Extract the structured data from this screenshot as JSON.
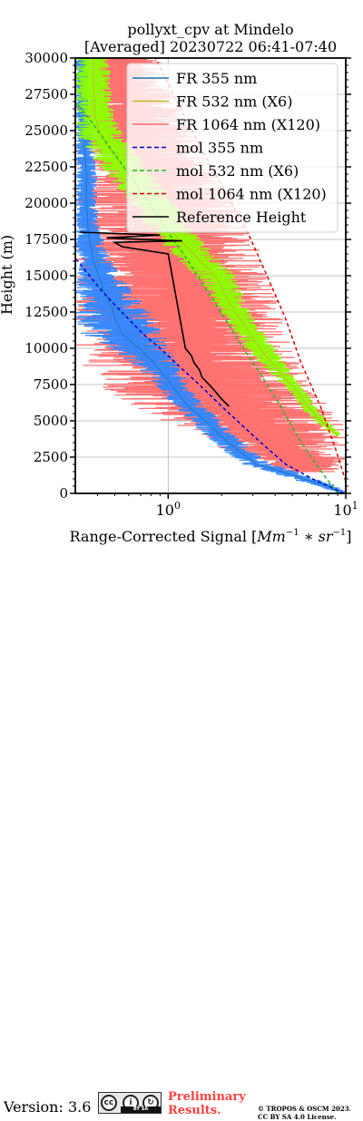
{
  "chart_data": {
    "type": "line",
    "title": "pollyxt_cpv at Mindelo",
    "subtitle": "[Averaged] 20230722 06:41-07:40",
    "xlabel_prefix": "Range-Corrected Signal [",
    "xlabel_math": "Mm",
    "xlabel_exp1": "−1",
    "xlabel_mid": " ∗ ",
    "xlabel_sr": "sr",
    "xlabel_exp2": "−1",
    "xlabel_suffix": "]",
    "ylabel": "Height (m)",
    "xscale": "log",
    "xlim": [
      0.3,
      10
    ],
    "ylim": [
      0,
      30000
    ],
    "grid": true,
    "legend_position": "upper-right",
    "x_tick_labels": [
      {
        "value": 1,
        "base": "10",
        "exp": "0"
      },
      {
        "value": 10,
        "base": "10",
        "exp": "1"
      }
    ],
    "y_ticks": [
      0,
      2500,
      5000,
      7500,
      10000,
      12500,
      15000,
      17500,
      20000,
      22500,
      25000,
      27500,
      30000
    ],
    "series": [
      {
        "name": "FR 355 nm",
        "color": "#1f77b4",
        "fill": "#2f86ff",
        "style": "solid",
        "envelope": [
          [
            0,
            9.0,
            10.5
          ],
          [
            500,
            7.0,
            9.0
          ],
          [
            1000,
            4.8,
            7.0
          ],
          [
            1500,
            3.6,
            5.2
          ],
          [
            2000,
            2.6,
            3.8
          ],
          [
            3000,
            2.0,
            3.0
          ],
          [
            4000,
            1.6,
            2.4
          ],
          [
            5000,
            1.3,
            2.0
          ],
          [
            6000,
            1.05,
            1.6
          ],
          [
            7000,
            0.9,
            1.4
          ],
          [
            8000,
            0.75,
            1.25
          ],
          [
            9000,
            0.6,
            1.15
          ],
          [
            10000,
            0.45,
            1.05
          ],
          [
            11000,
            0.32,
            0.95
          ],
          [
            12000,
            0.3,
            0.85
          ],
          [
            13000,
            0.3,
            0.75
          ],
          [
            14000,
            0.3,
            0.62
          ],
          [
            15000,
            0.3,
            0.55
          ],
          [
            16000,
            0.3,
            0.48
          ],
          [
            17000,
            0.3,
            0.45
          ],
          [
            18000,
            0.3,
            0.42
          ],
          [
            20000,
            0.3,
            0.4
          ],
          [
            22000,
            0.3,
            0.4
          ],
          [
            24000,
            0.3,
            0.38
          ],
          [
            26000,
            0.3,
            0.36
          ],
          [
            28000,
            0.3,
            0.36
          ],
          [
            30000,
            0.3,
            0.36
          ]
        ]
      },
      {
        "name": "FR 532 nm (X6)",
        "color": "#bcbd22",
        "fill": "#8cff00",
        "style": "solid",
        "envelope": [
          [
            4000,
            8.5,
            9.5
          ],
          [
            5000,
            6.5,
            8.0
          ],
          [
            6000,
            5.5,
            6.8
          ],
          [
            7000,
            4.8,
            6.0
          ],
          [
            8000,
            3.9,
            5.2
          ],
          [
            9000,
            3.2,
            4.6
          ],
          [
            10000,
            2.7,
            4.0
          ],
          [
            11000,
            2.4,
            3.5
          ],
          [
            12000,
            2.1,
            3.1
          ],
          [
            13000,
            1.8,
            2.8
          ],
          [
            14000,
            1.6,
            2.6
          ],
          [
            15000,
            1.4,
            2.4
          ],
          [
            16000,
            1.15,
            2.0
          ],
          [
            17000,
            0.95,
            1.7
          ],
          [
            18000,
            0.8,
            1.4
          ],
          [
            19000,
            0.7,
            1.25
          ],
          [
            20000,
            0.6,
            1.1
          ],
          [
            21000,
            0.52,
            0.95
          ],
          [
            22000,
            0.45,
            0.82
          ],
          [
            23000,
            0.38,
            0.72
          ],
          [
            24000,
            0.33,
            0.62
          ],
          [
            25000,
            0.3,
            0.55
          ],
          [
            26000,
            0.3,
            0.5
          ],
          [
            28000,
            0.3,
            0.48
          ],
          [
            30000,
            0.3,
            0.48
          ]
        ]
      },
      {
        "name": "FR 1064 nm (X120)",
        "color": "#ff6a6a",
        "fill": "#ff6a6a",
        "style": "solid",
        "envelope": [
          [
            1500,
            3.5,
            10
          ],
          [
            3000,
            2.0,
            10
          ],
          [
            5000,
            0.9,
            10
          ],
          [
            6000,
            0.6,
            8
          ],
          [
            7000,
            0.45,
            7
          ],
          [
            8000,
            0.35,
            6
          ],
          [
            10000,
            0.3,
            5
          ],
          [
            12000,
            0.3,
            4.5
          ],
          [
            14000,
            0.3,
            4.0
          ],
          [
            15000,
            0.3,
            3.8
          ],
          [
            16000,
            0.3,
            3.5
          ],
          [
            17000,
            0.3,
            3.2
          ],
          [
            18000,
            0.3,
            3.0
          ],
          [
            20000,
            0.3,
            2.4
          ],
          [
            22000,
            0.3,
            1.9
          ],
          [
            24000,
            0.3,
            1.5
          ],
          [
            26000,
            0.3,
            1.2
          ],
          [
            28000,
            0.3,
            1.0
          ],
          [
            30000,
            0.3,
            0.9
          ]
        ]
      },
      {
        "name": "mol 355 nm",
        "color": "#0000cc",
        "style": "dashed",
        "points": [
          [
            9.8,
            0
          ],
          [
            6.5,
            1000
          ],
          [
            4.6,
            2000
          ],
          [
            3.7,
            3000
          ],
          [
            3.0,
            4000
          ],
          [
            2.45,
            5000
          ],
          [
            2.0,
            6000
          ],
          [
            1.65,
            7000
          ],
          [
            1.35,
            8000
          ],
          [
            1.1,
            9000
          ],
          [
            0.9,
            10000
          ],
          [
            0.72,
            11000
          ],
          [
            0.6,
            12000
          ],
          [
            0.5,
            13000
          ],
          [
            0.42,
            14000
          ],
          [
            0.36,
            15000
          ],
          [
            0.31,
            16000
          ],
          [
            0.28,
            16500
          ]
        ]
      },
      {
        "name": "mol 532 nm (X6)",
        "color": "#22bb22",
        "style": "dashed",
        "points": [
          [
            9.0,
            0
          ],
          [
            6.8,
            2000
          ],
          [
            5.3,
            4000
          ],
          [
            4.3,
            6000
          ],
          [
            3.4,
            8000
          ],
          [
            2.65,
            10000
          ],
          [
            2.1,
            12000
          ],
          [
            1.65,
            14000
          ],
          [
            1.3,
            16000
          ],
          [
            1.0,
            18000
          ],
          [
            0.78,
            20000
          ],
          [
            0.6,
            22000
          ],
          [
            0.46,
            24000
          ],
          [
            0.35,
            26000
          ],
          [
            0.3,
            27000
          ]
        ]
      },
      {
        "name": "mol 1064 nm (X120)",
        "color": "#dd0000",
        "style": "dashed",
        "points": [
          [
            10.5,
            0
          ],
          [
            8.8,
            3000
          ],
          [
            7.2,
            6000
          ],
          [
            5.6,
            9000
          ],
          [
            4.6,
            12000
          ],
          [
            3.6,
            15000
          ],
          [
            2.8,
            18000
          ],
          [
            2.05,
            21000
          ],
          [
            1.5,
            24000
          ],
          [
            1.12,
            27000
          ],
          [
            0.85,
            30000
          ]
        ]
      },
      {
        "name": "Reference Height",
        "color": "#000000",
        "style": "solid",
        "points": [
          [
            2.2,
            6000
          ],
          [
            2.0,
            6500
          ],
          [
            1.85,
            7000
          ],
          [
            1.7,
            7500
          ],
          [
            1.55,
            8000
          ],
          [
            1.5,
            8500
          ],
          [
            1.4,
            9000
          ],
          [
            1.35,
            9500
          ],
          [
            1.25,
            10000
          ],
          [
            1.0,
            16500
          ],
          [
            0.55,
            17000
          ],
          [
            0.5,
            17300
          ],
          [
            1.2,
            17400
          ],
          [
            0.45,
            17600
          ],
          [
            0.9,
            17800
          ],
          [
            0.32,
            18000
          ]
        ]
      }
    ]
  },
  "footer": {
    "version": "Version: 3.6",
    "license_badge_text": "BY   SA",
    "preliminary_line1": "Preliminary",
    "preliminary_line2": "Results.",
    "credit_line1": "© TROPOS & OSCM 2023.",
    "credit_line2": "CC BY SA 4.0 License."
  }
}
